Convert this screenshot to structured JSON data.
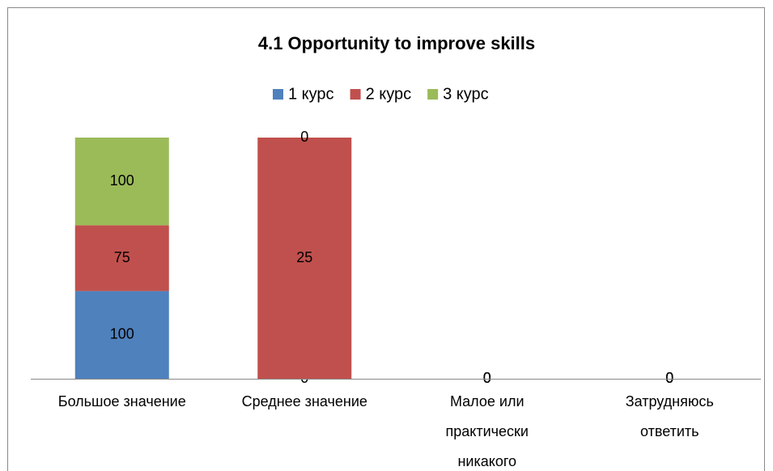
{
  "chart_data": {
    "type": "bar",
    "stacking": "percent",
    "title": "4.1 Opportunity to improve skills",
    "categories": [
      "Большое значение",
      "Среднее значение",
      "Малое или практически никакого",
      "Затрудняюсь ответить"
    ],
    "series": [
      {
        "name": "1 курс",
        "color": "#4f81bd",
        "values": [
          100,
          0,
          0,
          0
        ]
      },
      {
        "name": "2 курс",
        "color": "#c0504d",
        "values": [
          75,
          25,
          0,
          0
        ]
      },
      {
        "name": "3 курс",
        "color": "#9bbb59",
        "values": [
          100,
          0,
          0,
          0
        ]
      }
    ],
    "legend": "top"
  }
}
